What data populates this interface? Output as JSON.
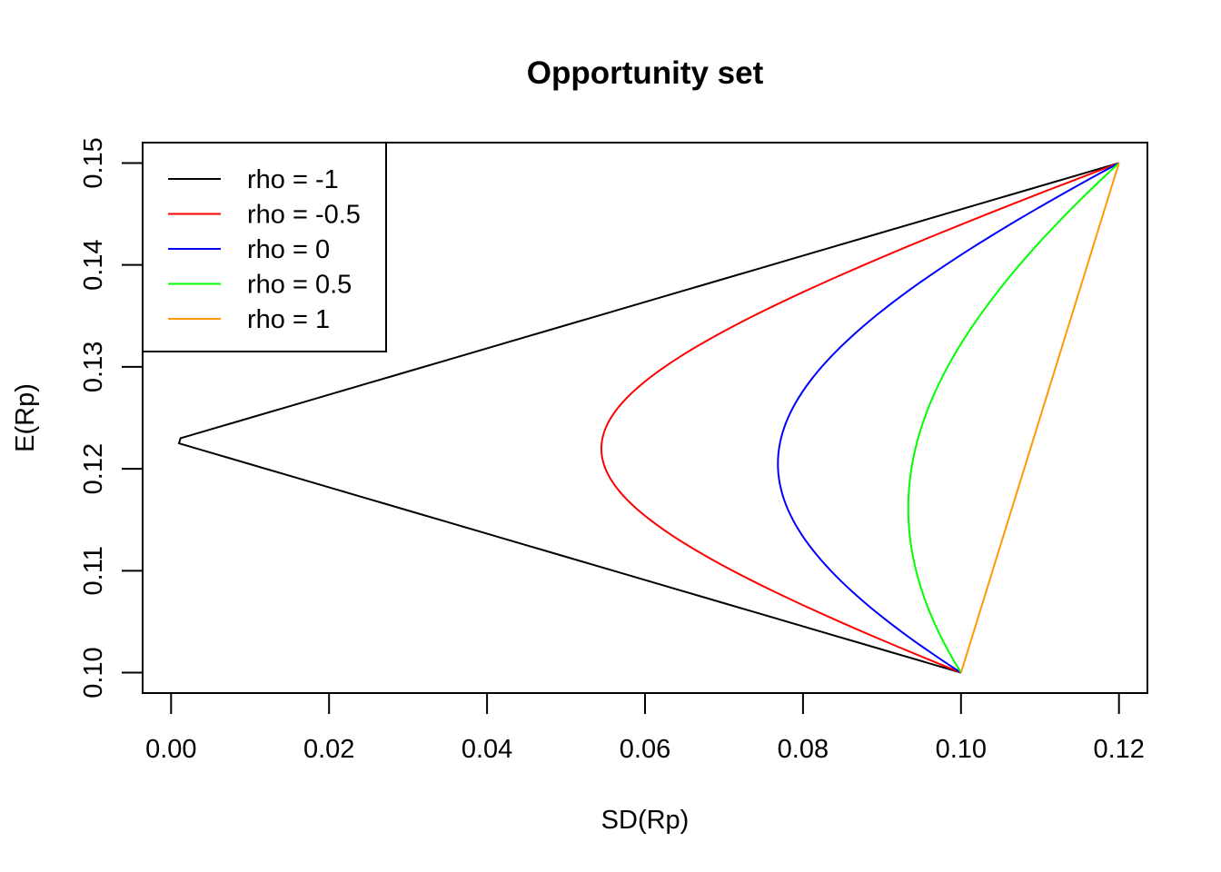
{
  "chart_data": {
    "type": "line",
    "title": "Opportunity set",
    "xlabel": "SD(Rp)",
    "ylabel": "E(Rp)",
    "xlim": [
      -0.0036,
      0.1236
    ],
    "ylim": [
      0.098,
      0.152
    ],
    "x_ticks": [
      0.0,
      0.02,
      0.04,
      0.06,
      0.08,
      0.1,
      0.12
    ],
    "x_tick_labels": [
      "0.00",
      "0.02",
      "0.04",
      "0.06",
      "0.08",
      "0.10",
      "0.12"
    ],
    "y_ticks": [
      0.1,
      0.11,
      0.12,
      0.13,
      0.14,
      0.15
    ],
    "y_tick_labels": [
      "0.10",
      "0.11",
      "0.12",
      "0.13",
      "0.14",
      "0.15"
    ],
    "grid": false,
    "legend_position": "top-left",
    "series": [
      {
        "name": "rho = -1",
        "rho": -1,
        "color": "#000000"
      },
      {
        "name": "rho = -0.5",
        "rho": -0.5,
        "color": "#ff0000"
      },
      {
        "name": "rho = 0",
        "rho": 0,
        "color": "#0000ff"
      },
      {
        "name": "rho = 0.5",
        "rho": 0.5,
        "color": "#00ff00"
      },
      {
        "name": "rho = 1",
        "rho": 1,
        "color": "#ff9900"
      }
    ],
    "asset_a": {
      "sd": 0.1,
      "mean": 0.1
    },
    "asset_b": {
      "sd": 0.12,
      "mean": 0.15
    },
    "weights": {
      "from": 0,
      "to": 1,
      "step": 0.01
    }
  }
}
